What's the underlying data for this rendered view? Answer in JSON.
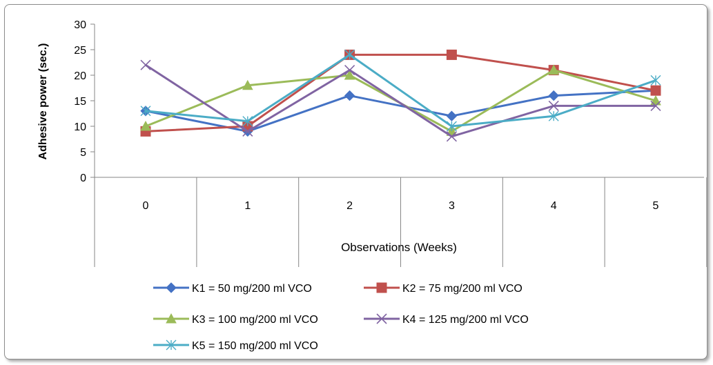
{
  "chart_data": {
    "type": "line",
    "title": "",
    "xlabel": "Observations (Weeks)",
    "ylabel": "Adhesive power (sec.)",
    "x": [
      0,
      1,
      2,
      3,
      4,
      5
    ],
    "ylim": [
      0,
      30
    ],
    "yticks": [
      0,
      5,
      10,
      15,
      20,
      25,
      30
    ],
    "grid": false,
    "legend_position": "bottom",
    "series": [
      {
        "name": "K1 = 50 mg/200 ml VCO",
        "values": [
          13,
          9,
          16,
          12,
          16,
          17
        ],
        "color": "#4472C4",
        "marker": "diamond"
      },
      {
        "name": "K2 = 75 mg/200 ml VCO",
        "values": [
          9,
          10,
          24,
          24,
          21,
          17
        ],
        "color": "#C0504D",
        "marker": "square"
      },
      {
        "name": "K3 = 100 mg/200 ml VCO",
        "values": [
          10,
          18,
          20,
          9,
          21,
          15
        ],
        "color": "#9BBB59",
        "marker": "triangle"
      },
      {
        "name": "K4 = 125 mg/200 ml VCO",
        "values": [
          22,
          9,
          21,
          8,
          14,
          14
        ],
        "color": "#8064A2",
        "marker": "x"
      },
      {
        "name": "K5 = 150 mg/200 ml VCO",
        "values": [
          13,
          11,
          24,
          10,
          12,
          19
        ],
        "color": "#4BACC6",
        "marker": "star"
      }
    ]
  }
}
